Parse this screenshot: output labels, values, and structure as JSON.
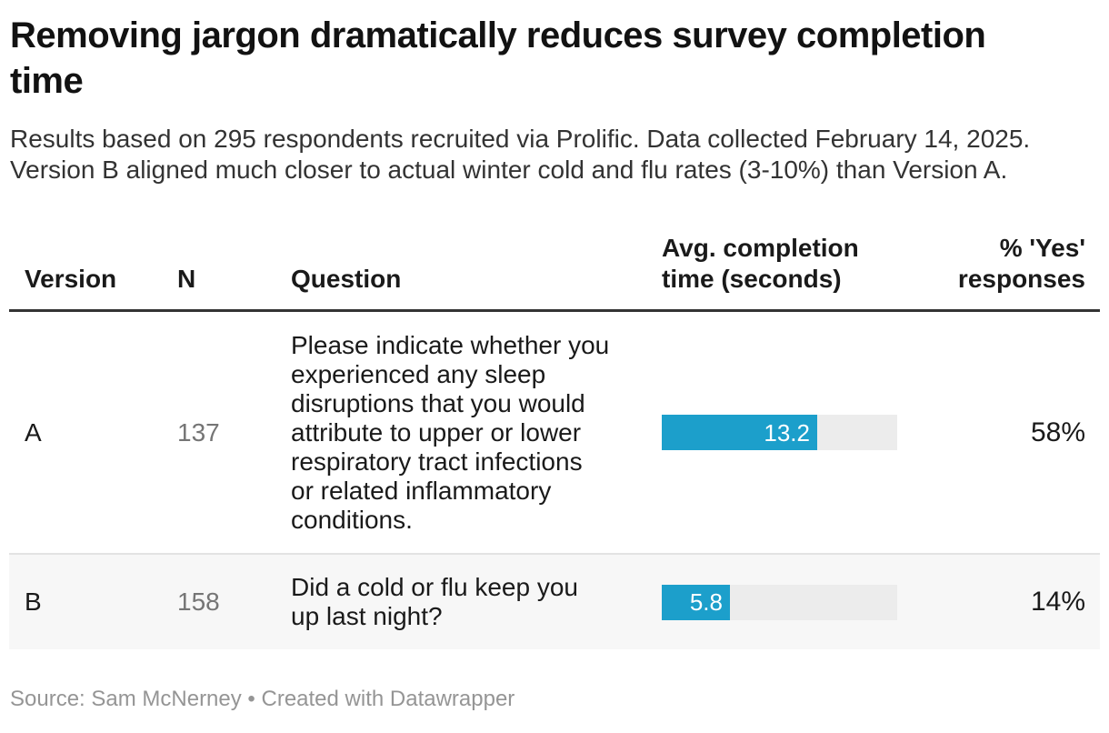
{
  "title": {
    "lines": [
      "Removing jargon dramatically reduces survey completion",
      "time"
    ]
  },
  "subtitle": {
    "lines": [
      "Results based on 295 respondents recruited via Prolific. Data collected February 14, 2025.",
      "Version B aligned much closer to actual winter cold and flu rates (3-10%) than Version A."
    ]
  },
  "table": {
    "columns": [
      "Version",
      "N",
      "Question",
      "Avg. completion time (seconds)",
      "% 'Yes' responses"
    ],
    "rows": [
      {
        "version": "A",
        "n": "137",
        "question": "Please indicate whether you experienced any sleep disruptions that you would attribute to upper or lower respiratory tract infections or related inflammatory conditions.",
        "avg_time": "13.2",
        "yes_pct": "58%"
      },
      {
        "version": "B",
        "n": "158",
        "question": "Did a cold or flu keep you up last night?",
        "avg_time": "5.8",
        "yes_pct": "14%"
      }
    ]
  },
  "footer": "Source: Sam McNerney • Created with Datawrapper",
  "colors": {
    "bar_fill": "#1c9fcb",
    "bar_track": "#ececec",
    "row_b_background": "#f7f7f7",
    "header_rule": "#333333",
    "muted_text": "#757575"
  },
  "chart_data": {
    "type": "table",
    "title": "Removing jargon dramatically reduces survey completion time",
    "subtitle": "Results based on 295 respondents recruited via Prolific. Data collected February 14, 2025. Version B aligned much closer to actual winter cold and flu rates (3-10%) than Version A.",
    "columns": [
      "Version",
      "N",
      "Question",
      "Avg. completion time (seconds)",
      "% 'Yes' responses"
    ],
    "rows": [
      [
        "A",
        137,
        "Please indicate whether you experienced any sleep disruptions that you would attribute to upper or lower respiratory tract infections or related inflammatory conditions.",
        13.2,
        "58%"
      ],
      [
        "B",
        158,
        "Did a cold or flu keep you up last night?",
        5.8,
        "14%"
      ]
    ],
    "bar_column": "Avg. completion time (seconds)",
    "bar_values": [
      13.2,
      5.8
    ],
    "bar_axis_max": 20,
    "bar_color": "#1c9fcb",
    "source": "Sam McNerney",
    "credit": "Created with Datawrapper"
  }
}
